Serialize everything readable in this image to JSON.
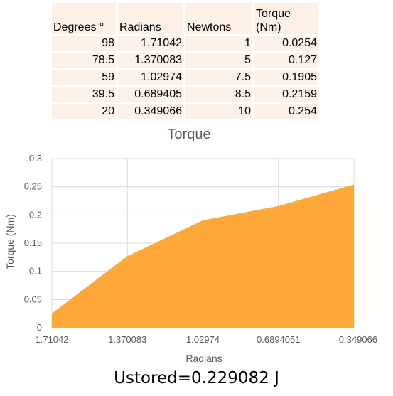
{
  "table": {
    "headers": [
      "Degrees °",
      "Radians",
      "Newtons",
      "Torque\n(Nm)"
    ],
    "rows": [
      [
        "98",
        "1.71042",
        "1",
        "0.0254"
      ],
      [
        "78.5",
        "1.370083",
        "5",
        "0.127"
      ],
      [
        "59",
        "1.02974",
        "7.5",
        "0.1905"
      ],
      [
        "39.5",
        "0.689405",
        "8.5",
        "0.2159"
      ],
      [
        "20",
        "0.349066",
        "10",
        "0.254"
      ]
    ]
  },
  "chart_data": {
    "type": "area",
    "title": "Torque",
    "xlabel": "Radians",
    "ylabel": "Torque (Nm)",
    "categories": [
      "1.71042",
      "1.370083",
      "1.02974",
      "0.6894051",
      "0.349066"
    ],
    "values": [
      0.0254,
      0.127,
      0.1905,
      0.2159,
      0.254
    ],
    "ylim": [
      0,
      0.3
    ],
    "yticks": [
      "0",
      "0.05",
      "0.1",
      "0.15",
      "0.2",
      "0.25",
      "0.3"
    ],
    "grid": true,
    "legend": "none",
    "fill_color": "#ffa83a"
  },
  "footer": {
    "text": "Ustored=0.229082 J"
  }
}
